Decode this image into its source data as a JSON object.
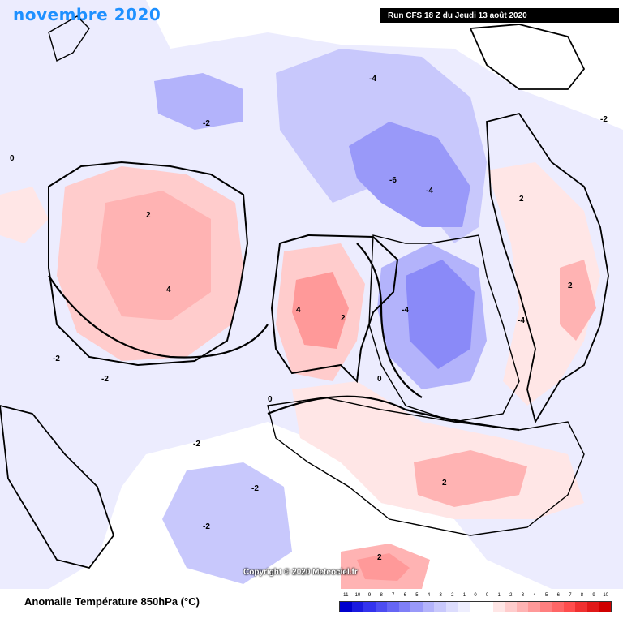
{
  "header": {
    "month_title": "novembre 2020",
    "run_info": "Run CFS 18 Z du Jeudi 13 août 2020"
  },
  "map": {
    "copyright": "Copyright © 2020 Meteociel.fr",
    "contour_labels": [
      "-4",
      "-2",
      "0",
      "2",
      "4",
      "-6"
    ]
  },
  "legend": {
    "title": "Anomalie Température 850hPa (°C)",
    "ticks": [
      "-11",
      "-10",
      "-9",
      "-8",
      "-7",
      "-6",
      "-5",
      "-4",
      "-3",
      "-2",
      "-1",
      "0",
      "0",
      "1",
      "2",
      "3",
      "4",
      "5",
      "6",
      "7",
      "8",
      "9",
      "10"
    ],
    "colors": [
      "#0000cd",
      "#1a1ae0",
      "#3333ee",
      "#4d4df2",
      "#6666f5",
      "#7f7ff7",
      "#9999f9",
      "#b3b3fb",
      "#c8c8fc",
      "#dcdcfd",
      "#eeeefe",
      "#ffffff",
      "#ffffff",
      "#ffe6e6",
      "#ffcccc",
      "#ffb3b3",
      "#ff9999",
      "#ff7f7f",
      "#ff6666",
      "#ff4d4d",
      "#f03030",
      "#e01818",
      "#d00000"
    ]
  }
}
